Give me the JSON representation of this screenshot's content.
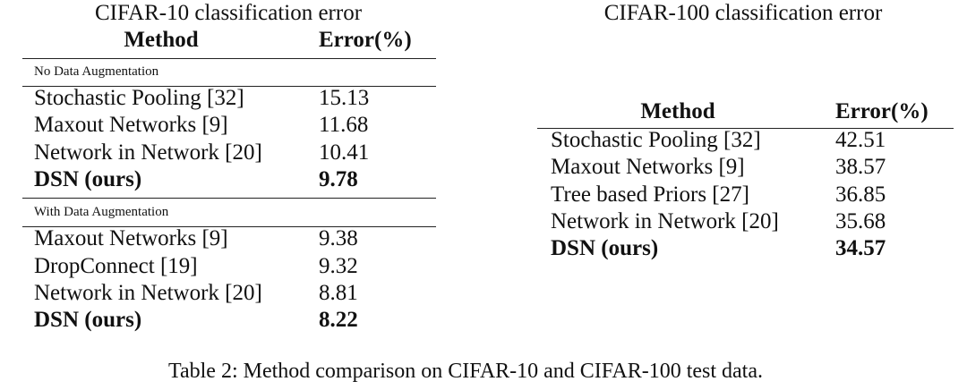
{
  "left": {
    "title": "CIFAR-10 classification error",
    "header": [
      "Method",
      "Error(%)"
    ],
    "sections": [
      {
        "label": "No Data Augmentation",
        "rows": [
          [
            "Stochastic Pooling [32]",
            "15.13"
          ],
          [
            "Maxout Networks [9]",
            "11.68"
          ],
          [
            "Network in Network [20]",
            "10.41"
          ],
          [
            "DSN (ours)",
            "9.78"
          ]
        ]
      },
      {
        "label": "With Data Augmentation",
        "rows": [
          [
            "Maxout Networks [9]",
            "9.38"
          ],
          [
            "DropConnect [19]",
            "9.32"
          ],
          [
            "Network in Network [20]",
            "8.81"
          ],
          [
            "DSN (ours)",
            "8.22"
          ]
        ]
      }
    ]
  },
  "right": {
    "title": "CIFAR-100 classification error",
    "header": [
      "Method",
      "Error(%)"
    ],
    "rows": [
      [
        "Stochastic Pooling [32]",
        "42.51"
      ],
      [
        "Maxout Networks [9]",
        "38.57"
      ],
      [
        "Tree based Priors [27]",
        "36.85"
      ],
      [
        "Network in Network [20]",
        "35.68"
      ],
      [
        "DSN (ours)",
        "34.57"
      ]
    ]
  },
  "caption": "Table 2: Method comparison on CIFAR-10 and CIFAR-100 test data."
}
